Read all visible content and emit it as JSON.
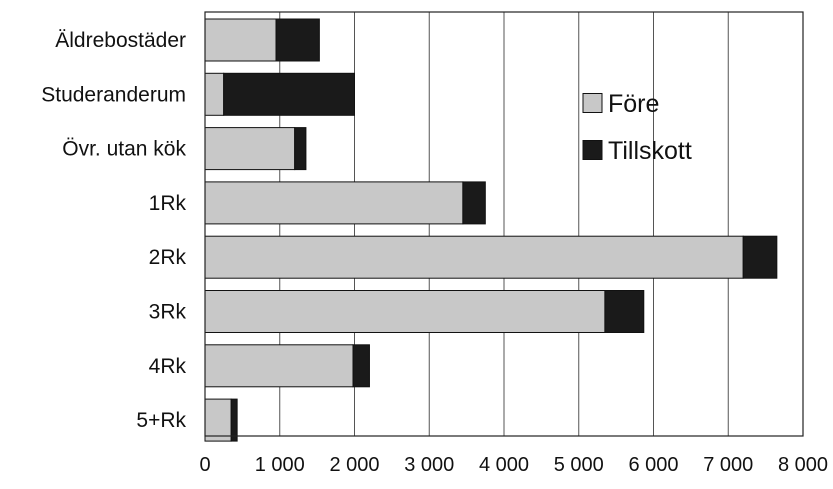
{
  "chart_data": {
    "type": "bar",
    "orientation": "horizontal",
    "stacked": true,
    "title": "",
    "xlabel": "",
    "ylabel": "",
    "categories": [
      "Äldrebostäder",
      "Studeranderum",
      "Övr. utan kök",
      "1Rk",
      "2Rk",
      "3Rk",
      "4Rk",
      "5+Rk"
    ],
    "series": [
      {
        "name": "Före",
        "color": "#c8c8c8",
        "values": [
          950,
          250,
          1200,
          3450,
          7200,
          5350,
          1980,
          350
        ]
      },
      {
        "name": "Tillskott",
        "color": "#1a1a1a",
        "values": [
          580,
          1750,
          150,
          300,
          450,
          520,
          220,
          80
        ]
      }
    ],
    "xlim": [
      0,
      8000
    ],
    "xticks": [
      {
        "value": 0,
        "label": "0"
      },
      {
        "value": 1000,
        "label": "1 000"
      },
      {
        "value": 2000,
        "label": "2 000"
      },
      {
        "value": 3000,
        "label": "3 000"
      },
      {
        "value": 4000,
        "label": "4 000"
      },
      {
        "value": 5000,
        "label": "5 000"
      },
      {
        "value": 6000,
        "label": "6 000"
      },
      {
        "value": 7000,
        "label": "7 000"
      },
      {
        "value": 8000,
        "label": "8 000"
      }
    ],
    "grid": "vertical",
    "legend": {
      "placement": "upper-right"
    }
  }
}
